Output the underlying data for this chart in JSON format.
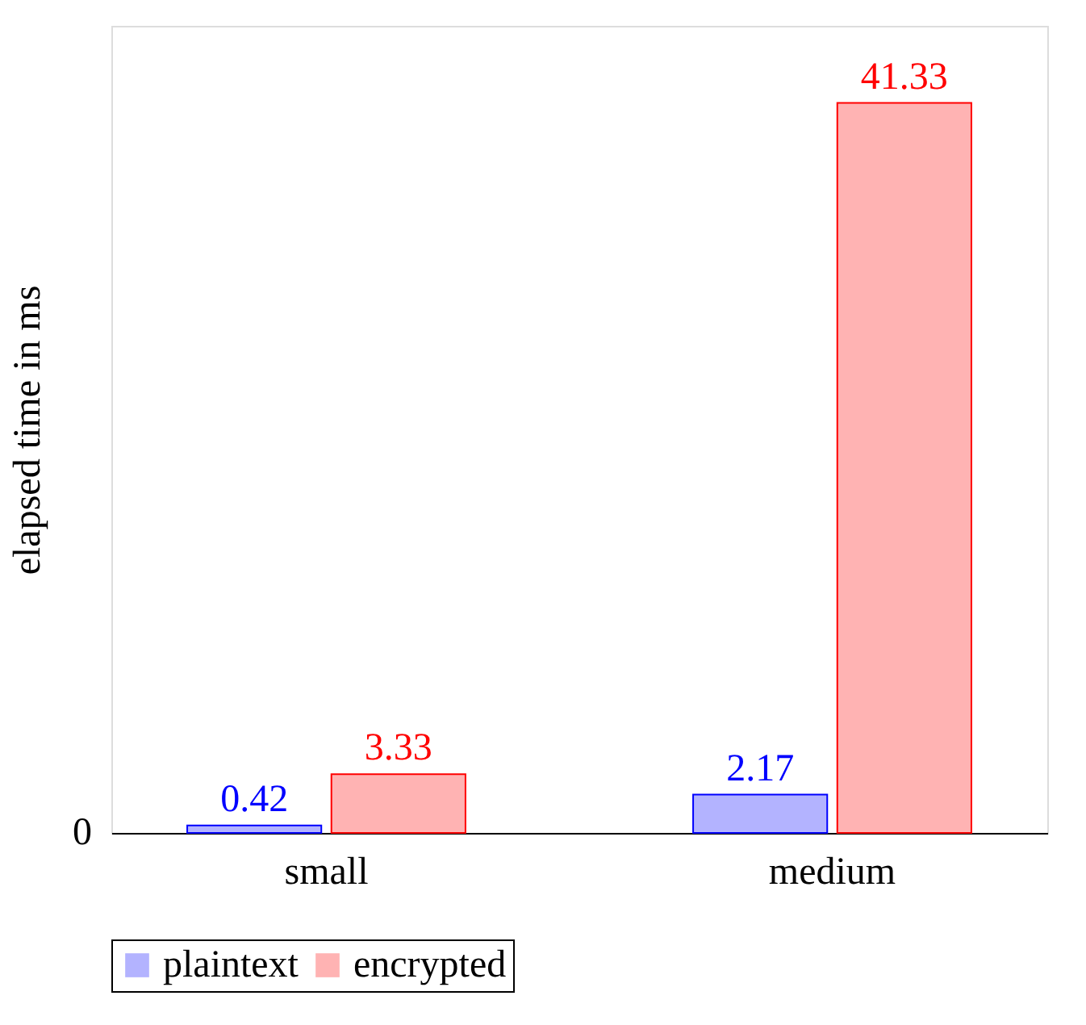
{
  "chart_data": {
    "type": "bar",
    "ylabel": "elapsed time in ms",
    "categories": [
      "small",
      "medium"
    ],
    "series": [
      {
        "name": "plaintext",
        "color": "#b3b3ff",
        "values": [
          0.42,
          2.17
        ]
      },
      {
        "name": "encrypted",
        "color": "#ffb3b3",
        "values": [
          3.33,
          41.33
        ]
      }
    ],
    "ylim": [
      0,
      45.7
    ],
    "data_labels": true,
    "annotations": [
      "0"
    ],
    "legend": "bottom",
    "grid": false
  }
}
